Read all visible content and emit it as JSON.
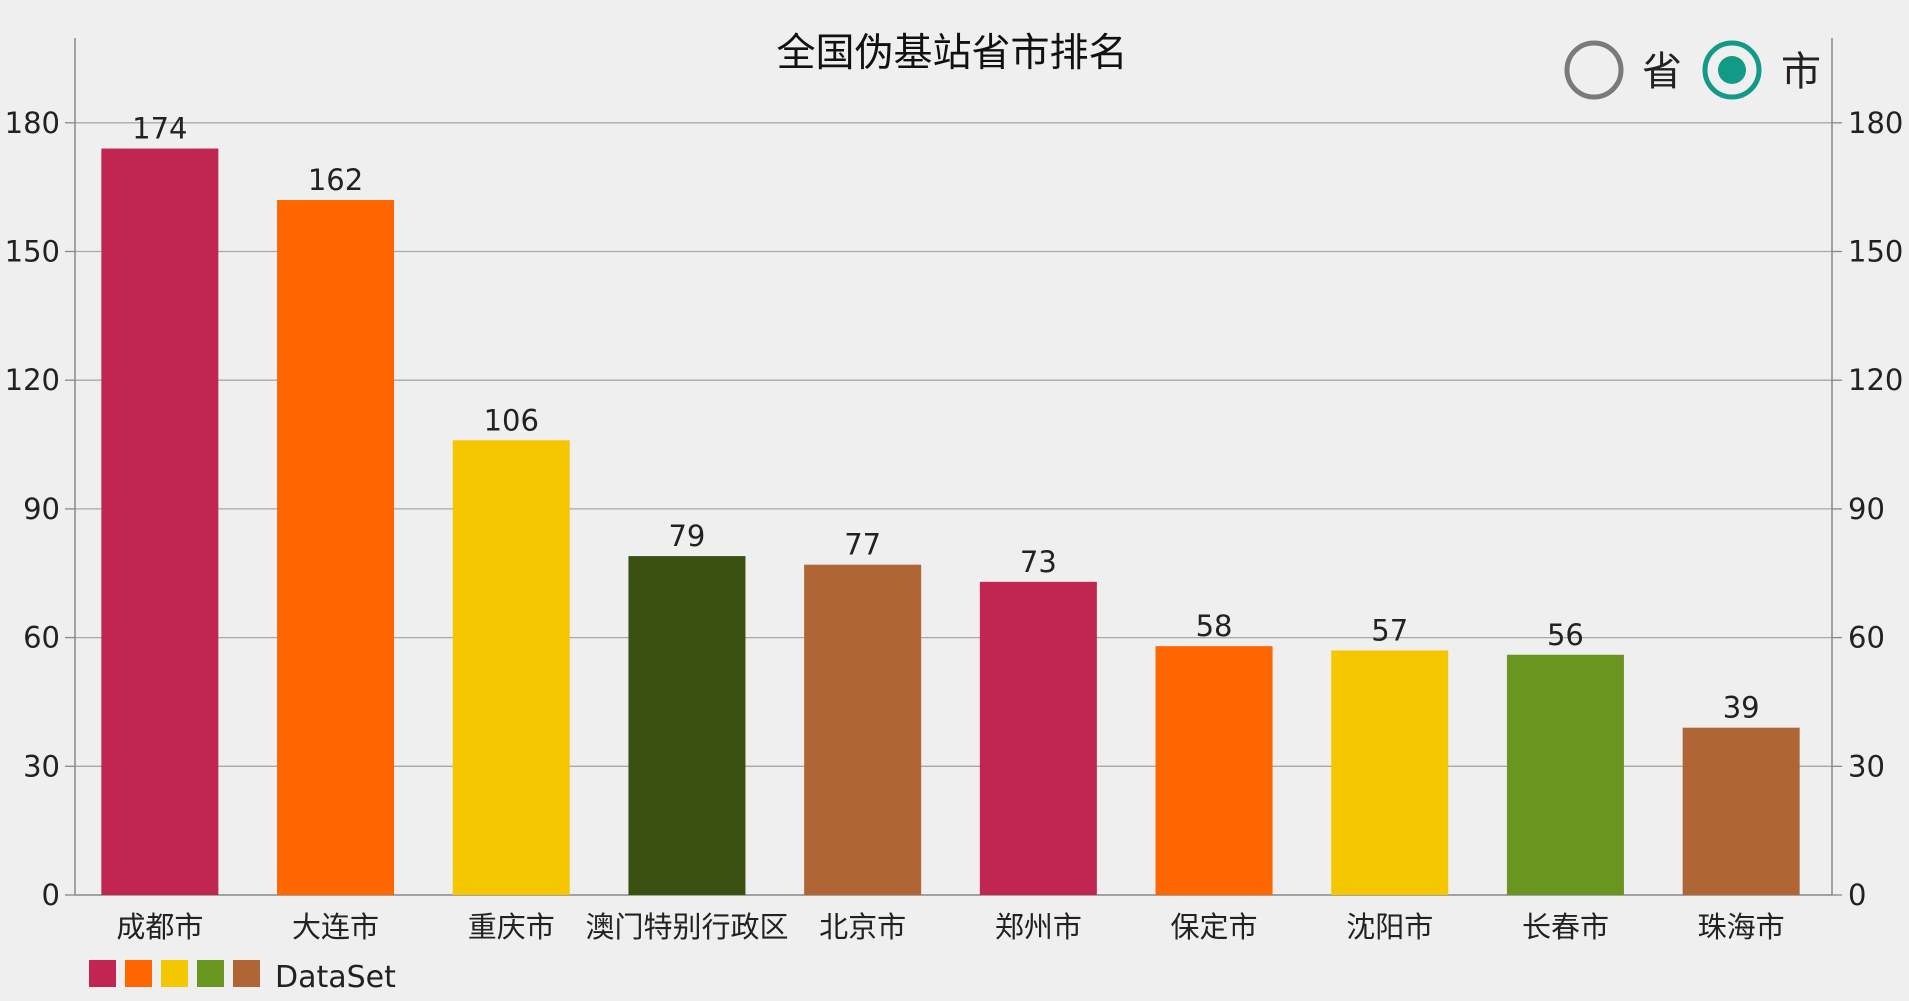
{
  "radio": {
    "options": [
      {
        "label": "省",
        "selected": false
      },
      {
        "label": "市",
        "selected": true
      }
    ],
    "accent_color": "#119a86",
    "inactive_color": "#7a7a7a"
  },
  "chart_data": {
    "type": "bar",
    "title": "全国伪基站省市排名",
    "categories": [
      "成都市",
      "大连市",
      "重庆市",
      "澳门特别行政区",
      "北京市",
      "郑州市",
      "保定市",
      "沈阳市",
      "长春市",
      "珠海市"
    ],
    "values": [
      174,
      162,
      106,
      79,
      77,
      73,
      58,
      57,
      56,
      39
    ],
    "bar_colors": [
      "#c12552",
      "#ff6600",
      "#f5c700",
      "#3a5011",
      "#b06535",
      "#c12552",
      "#ff6600",
      "#f5c700",
      "#6a961f",
      "#b06535"
    ],
    "ylim": [
      0,
      180
    ],
    "yticks": [
      0,
      30,
      60,
      90,
      120,
      150,
      180
    ],
    "grid": true,
    "legend": {
      "placement": "bottom-left",
      "label": "DataSet",
      "swatch_colors": [
        "#c12552",
        "#ff6600",
        "#f5c700",
        "#6a961f",
        "#b06535"
      ]
    }
  }
}
